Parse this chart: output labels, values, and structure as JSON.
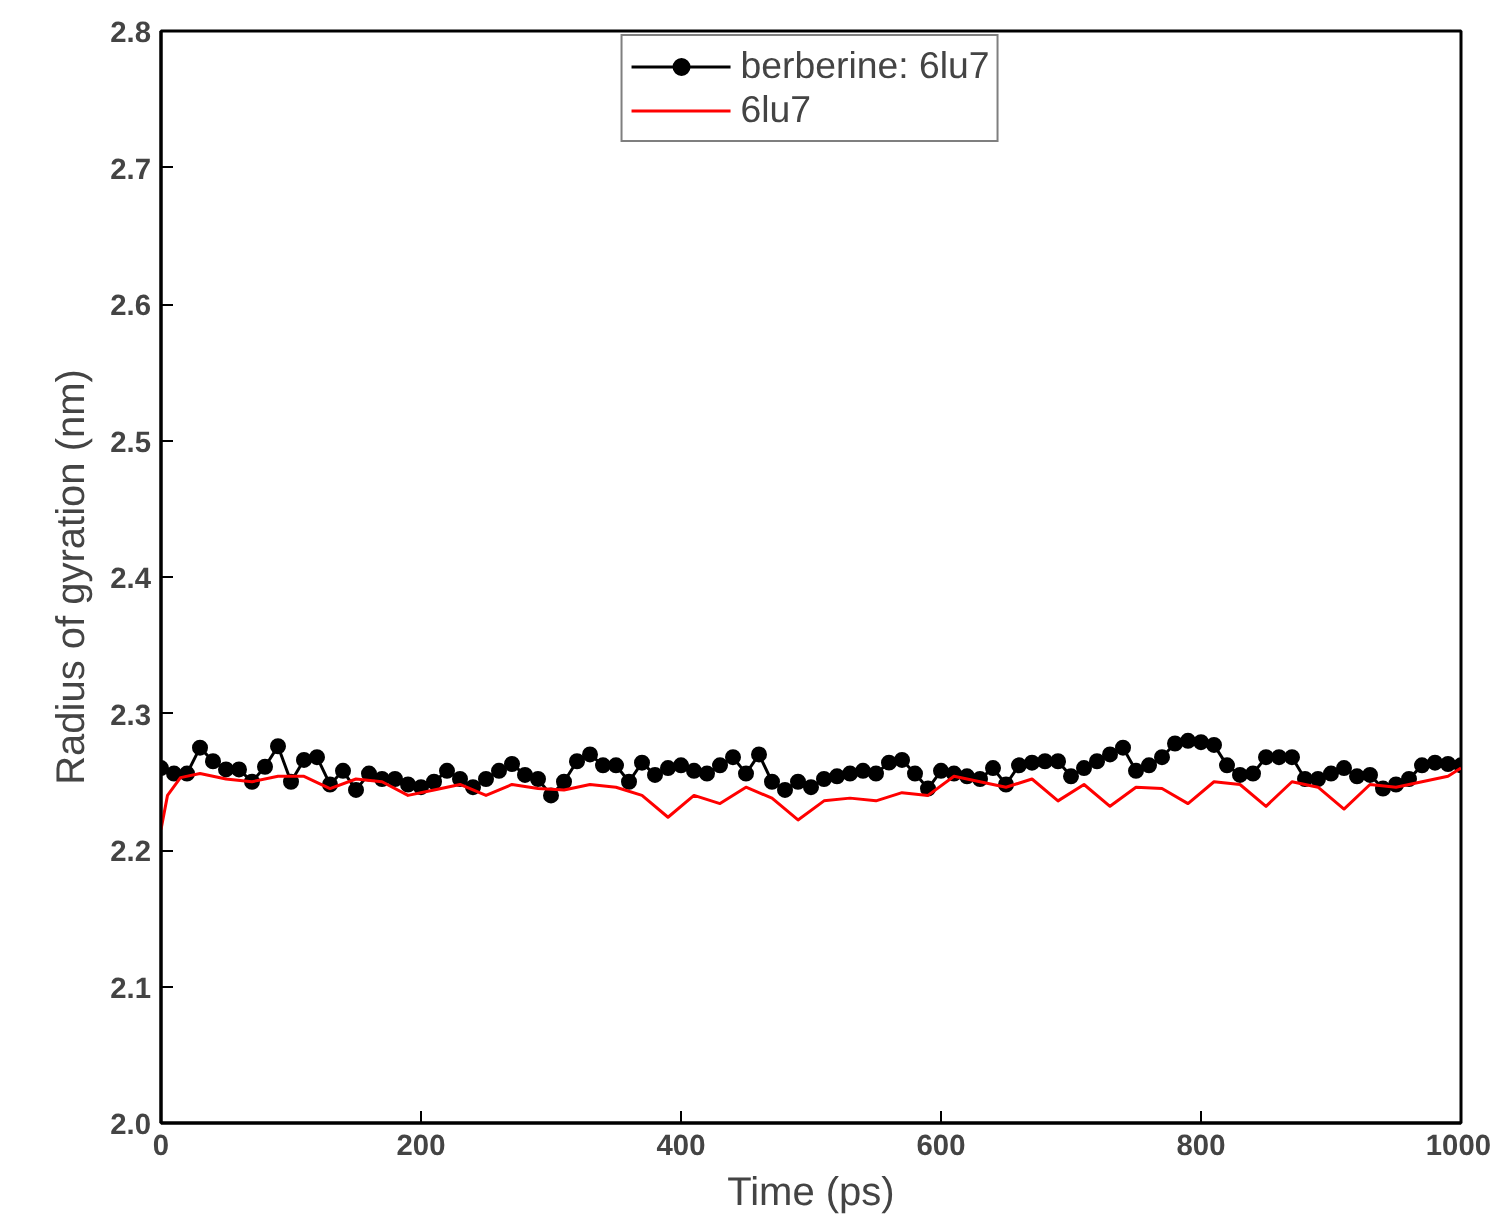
{
  "chart_data": {
    "type": "line",
    "xlabel": "Time (ps)",
    "ylabel": "Radius of gyration (nm)",
    "xlim": [
      0,
      1000
    ],
    "ylim": [
      2.0,
      2.8
    ],
    "xticks": [
      0,
      200,
      400,
      600,
      800,
      1000
    ],
    "yticks": [
      {
        "value": 2.0,
        "label": "2.0"
      },
      {
        "value": 2.1,
        "label": "2.1"
      },
      {
        "value": 2.2,
        "label": "2.2"
      },
      {
        "value": 2.3,
        "label": "2.3"
      },
      {
        "value": 2.4,
        "label": "2.4"
      },
      {
        "value": 2.5,
        "label": "2.5"
      },
      {
        "value": 2.6,
        "label": "2.6"
      },
      {
        "value": 2.7,
        "label": "2.7"
      },
      {
        "value": 2.8,
        "label": "2.8"
      }
    ],
    "grid": false,
    "legend": "top",
    "series": [
      {
        "name": "berberine: 6lu7",
        "color": "#000000",
        "marker": "circle",
        "x": [
          0,
          10,
          20,
          30,
          40,
          50,
          60,
          70,
          80,
          90,
          100,
          110,
          120,
          130,
          140,
          150,
          160,
          170,
          180,
          190,
          200,
          210,
          220,
          230,
          240,
          250,
          260,
          270,
          280,
          290,
          300,
          310,
          320,
          330,
          340,
          350,
          360,
          370,
          380,
          390,
          400,
          410,
          420,
          430,
          440,
          450,
          460,
          470,
          480,
          490,
          500,
          510,
          520,
          530,
          540,
          550,
          560,
          570,
          580,
          590,
          600,
          610,
          620,
          630,
          640,
          650,
          660,
          670,
          680,
          690,
          700,
          710,
          720,
          730,
          740,
          750,
          760,
          770,
          780,
          790,
          800,
          810,
          820,
          830,
          840,
          850,
          860,
          870,
          880,
          890,
          900,
          910,
          920,
          930,
          940,
          950,
          960,
          970,
          980,
          990,
          1000
        ],
        "values": [
          2.26,
          2.256,
          2.256,
          2.275,
          2.265,
          2.259,
          2.259,
          2.25,
          2.261,
          2.276,
          2.25,
          2.266,
          2.268,
          2.248,
          2.258,
          2.244,
          2.256,
          2.252,
          2.252,
          2.248,
          2.246,
          2.25,
          2.258,
          2.252,
          2.246,
          2.252,
          2.258,
          2.263,
          2.255,
          2.252,
          2.24,
          2.25,
          2.265,
          2.27,
          2.262,
          2.262,
          2.25,
          2.264,
          2.255,
          2.26,
          2.262,
          2.258,
          2.256,
          2.262,
          2.268,
          2.256,
          2.27,
          2.25,
          2.244,
          2.25,
          2.246,
          2.252,
          2.254,
          2.256,
          2.258,
          2.256,
          2.264,
          2.266,
          2.256,
          2.245,
          2.258,
          2.256,
          2.254,
          2.252,
          2.26,
          2.248,
          2.262,
          2.264,
          2.265,
          2.265,
          2.254,
          2.26,
          2.265,
          2.27,
          2.275,
          2.258,
          2.262,
          2.268,
          2.278,
          2.28,
          2.279,
          2.277,
          2.262,
          2.255,
          2.256,
          2.268,
          2.268,
          2.268,
          2.252,
          2.252,
          2.256,
          2.26,
          2.254,
          2.255,
          2.245,
          2.248,
          2.252,
          2.262,
          2.264,
          2.263,
          2.262
        ]
      },
      {
        "name": "6lu7",
        "color": "#ff0000",
        "marker": "none",
        "x": [
          0,
          5,
          15,
          30,
          50,
          70,
          90,
          110,
          130,
          150,
          170,
          190,
          210,
          230,
          250,
          270,
          290,
          310,
          330,
          350,
          370,
          390,
          410,
          430,
          450,
          470,
          490,
          510,
          530,
          550,
          570,
          590,
          610,
          630,
          650,
          670,
          690,
          710,
          730,
          750,
          770,
          790,
          810,
          830,
          850,
          870,
          890,
          910,
          930,
          950,
          970,
          990,
          1000
        ],
        "values": [
          2.215,
          2.24,
          2.253,
          2.256,
          2.252,
          2.25,
          2.254,
          2.254,
          2.245,
          2.252,
          2.25,
          2.24,
          2.244,
          2.248,
          2.24,
          2.248,
          2.245,
          2.244,
          2.248,
          2.246,
          2.24,
          2.224,
          2.24,
          2.234,
          2.246,
          2.238,
          2.222,
          2.236,
          2.238,
          2.236,
          2.242,
          2.24,
          2.254,
          2.25,
          2.246,
          2.252,
          2.236,
          2.248,
          2.232,
          2.246,
          2.245,
          2.234,
          2.25,
          2.248,
          2.232,
          2.25,
          2.246,
          2.23,
          2.248,
          2.246,
          2.25,
          2.254,
          2.26
        ]
      }
    ]
  }
}
